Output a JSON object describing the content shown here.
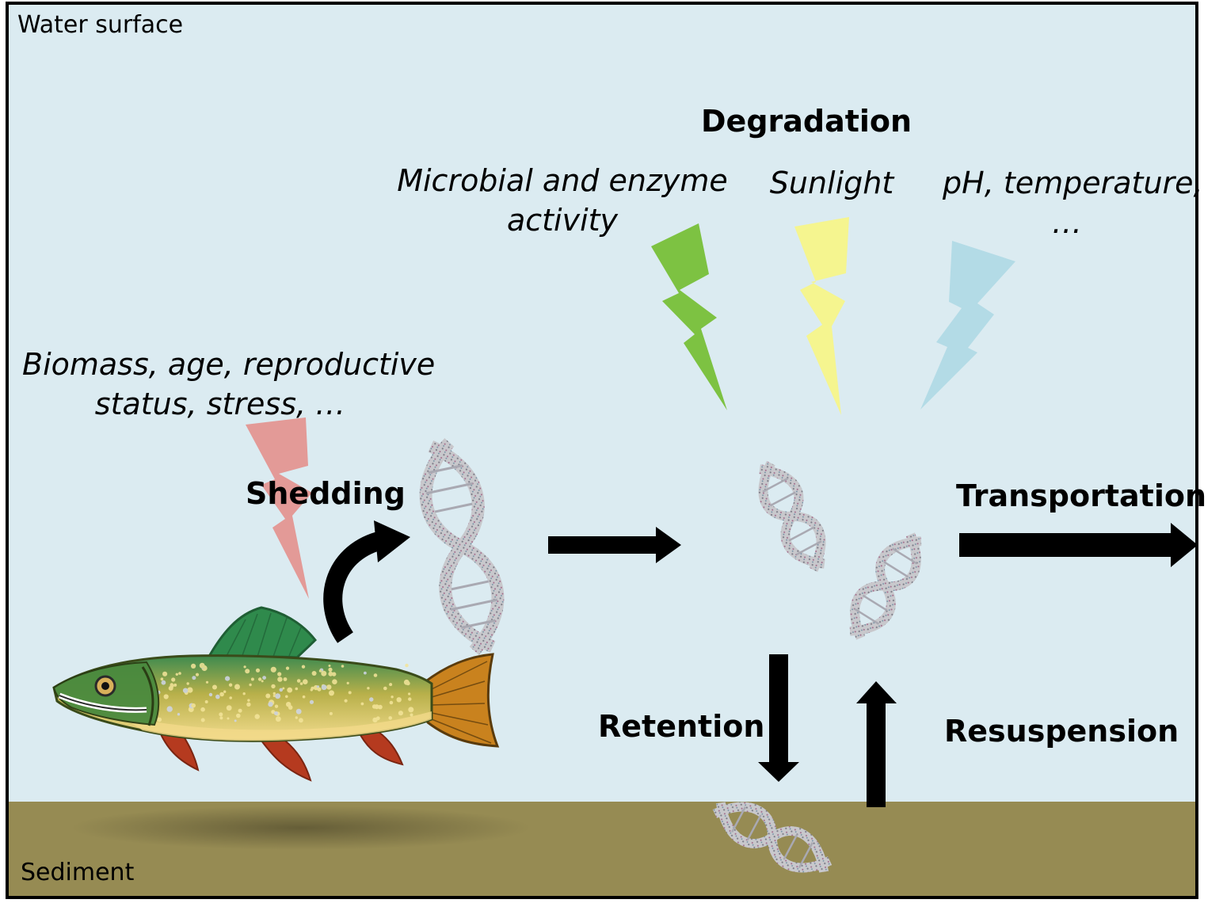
{
  "labels": {
    "water_surface": "Water surface",
    "sediment": "Sediment",
    "degradation": "Degradation",
    "microbial_line1": "Microbial and enzyme",
    "microbial_line2": "activity",
    "sunlight": "Sunlight",
    "ph_line1": "pH, temperature,",
    "ph_line2": "…",
    "biomass_line1": "Biomass, age, reproductive",
    "biomass_line2": "status, stress, …",
    "shedding": "Shedding",
    "transportation": "Transportation",
    "retention": "Retention",
    "resuspension": "Resuspension"
  },
  "colors": {
    "water": "#dbebf1",
    "sediment": "#968b53",
    "border": "#000000",
    "bolt_microbial": "#7dc242",
    "bolt_sunlight": "#f5f58f",
    "bolt_ph": "#b3dbe6",
    "bolt_biomass": "#e39a97",
    "arrow": "#000000",
    "fish_back": "#2e7d4a",
    "fish_belly": "#f2d98a",
    "fish_fins": "#b53a1f",
    "fish_tail": "#c9821e"
  }
}
